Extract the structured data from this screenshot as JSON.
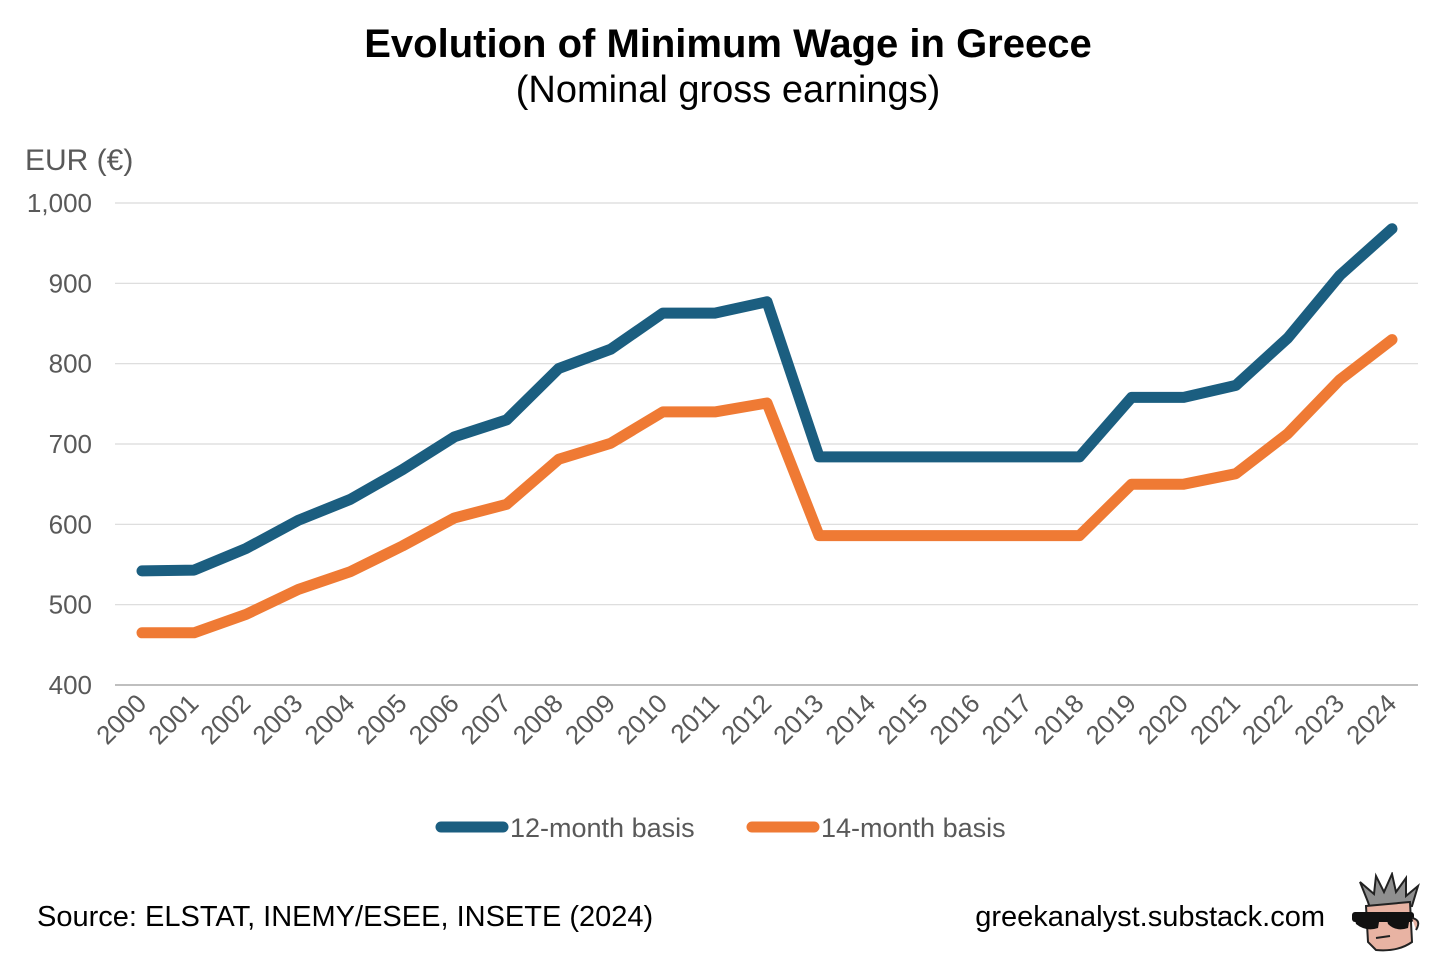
{
  "header": {
    "title": "Evolution of Minimum Wage in Greece",
    "subtitle": "(Nominal gross earnings)"
  },
  "footer": {
    "source": "Source: ELSTAT, INEMY/ESEE, INSETE (2024)",
    "site": "greekanalyst.substack.com",
    "avatar_icon": "sunglasses-face-icon"
  },
  "chart_data": {
    "type": "line",
    "title": "Evolution of Minimum Wage in Greece",
    "subtitle": "(Nominal gross earnings)",
    "xlabel": "",
    "ylabel": "EUR (€)",
    "ylim": [
      400,
      1000
    ],
    "yticks": [
      400,
      500,
      600,
      700,
      800,
      900,
      1000
    ],
    "ytick_labels": [
      "400",
      "500",
      "600",
      "700",
      "800",
      "900",
      "1,000"
    ],
    "grid": true,
    "legend_position": "bottom",
    "categories": [
      "2000",
      "2001",
      "2002",
      "2003",
      "2004",
      "2005",
      "2006",
      "2007",
      "2008",
      "2009",
      "2010",
      "2011",
      "2012",
      "2013",
      "2014",
      "2015",
      "2016",
      "2017",
      "2018",
      "2019",
      "2020",
      "2021",
      "2022",
      "2023",
      "2024"
    ],
    "series": [
      {
        "name": "12-month basis",
        "color": "#1b5e80",
        "values": [
          542,
          543,
          570,
          605,
          631,
          668,
          709,
          730,
          794,
          818,
          863,
          863,
          877,
          684,
          684,
          684,
          684,
          684,
          684,
          758,
          758,
          773,
          832,
          910,
          968
        ]
      },
      {
        "name": "14-month basis",
        "color": "#ef7a34",
        "values": [
          465,
          465,
          488,
          519,
          541,
          573,
          608,
          625,
          681,
          701,
          740,
          740,
          751,
          586,
          586,
          586,
          586,
          586,
          586,
          650,
          650,
          663,
          713,
          780,
          830
        ]
      }
    ]
  }
}
